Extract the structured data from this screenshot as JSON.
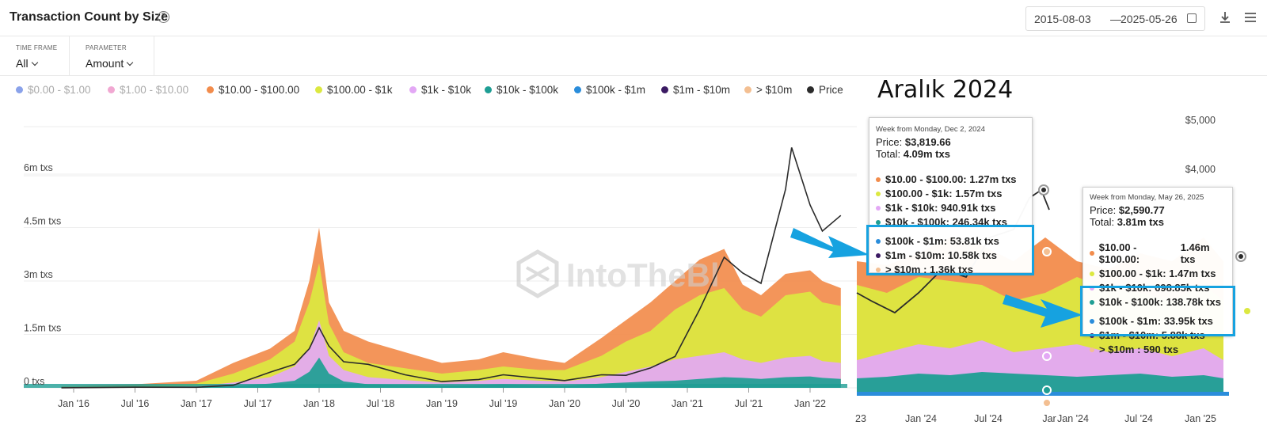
{
  "header": {
    "title": "Transaction Count by Size",
    "help_glyph": "?",
    "date_from": "2015-08-03",
    "date_sep": "—",
    "date_to": "2025-05-26"
  },
  "controls": {
    "timeframe_label": "TIME FRAME",
    "timeframe_value": "All",
    "parameter_label": "PARAMETER",
    "parameter_value": "Amount"
  },
  "overlay_title": "Aralık 2024",
  "watermark": "IntoTheBl",
  "colors": {
    "s0": "#8aa2ea",
    "s1": "#f1a8d2",
    "s2": "#f28c4c",
    "s3": "#dce840",
    "s4": "#e3a8f5",
    "s5": "#1e9e94",
    "s6": "#2a8ddb",
    "s7": "#3b1a63",
    "s8": "#f3bf92",
    "price": "#2b2b2b",
    "highlight": "#16a2e0"
  },
  "chart_data": {
    "type": "area",
    "stacked": true,
    "y_axis_left": {
      "ticks": [
        "0 txs",
        "1.5m txs",
        "3m txs",
        "4.5m txs",
        "6m txs"
      ],
      "values": [
        0,
        1.5,
        3,
        4.5,
        6
      ],
      "unit": "m txs"
    },
    "y_axis_right": {
      "ticks": [
        "$4,000",
        "$5,000"
      ],
      "values": [
        4000,
        5000
      ]
    },
    "x_ticks": [
      "Jan '16",
      "Jul '16",
      "Jan '17",
      "Jul '17",
      "Jan '18",
      "Jul '18",
      "Jan '19",
      "Jul '19",
      "Jan '20",
      "Jul '20",
      "Jan '21",
      "Jul '21",
      "Jan '22"
    ],
    "x_ticks_zoom": [
      "23",
      "Jan '24",
      "Jul '24",
      "Jar",
      "Jan '24",
      "Jul '24",
      "Jan '25"
    ],
    "legend": [
      {
        "label": "$0.00 - $1.00",
        "color_key": "s0",
        "enabled": false
      },
      {
        "label": "$1.00 - $10.00",
        "color_key": "s1",
        "enabled": false
      },
      {
        "label": "$10.00 - $100.00",
        "color_key": "s2",
        "enabled": true
      },
      {
        "label": "$100.00 - $1k",
        "color_key": "s3",
        "enabled": true
      },
      {
        "label": "$1k - $10k",
        "color_key": "s4",
        "enabled": true
      },
      {
        "label": "$10k - $100k",
        "color_key": "s5",
        "enabled": true
      },
      {
        "label": "$100k - $1m",
        "color_key": "s6",
        "enabled": true
      },
      {
        "label": "$1m - $10m",
        "color_key": "s7",
        "enabled": true
      },
      {
        "label": "> $10m",
        "color_key": "s8",
        "enabled": true
      },
      {
        "label": "Price",
        "color_key": "price",
        "enabled": true
      }
    ],
    "x_years": [
      2015.9,
      2016.5,
      2017.0,
      2017.3,
      2017.6,
      2017.8,
      2017.92,
      2018.0,
      2018.08,
      2018.2,
      2018.4,
      2018.7,
      2019.0,
      2019.3,
      2019.5,
      2019.8,
      2020.0,
      2020.3,
      2020.5,
      2020.7,
      2020.9,
      2021.1,
      2021.3,
      2021.45,
      2021.6,
      2021.8,
      2022.0,
      2022.1,
      2022.25
    ],
    "series": [
      {
        "name": "$10k - $100k",
        "values": [
          0.005,
          0.01,
          0.02,
          0.05,
          0.12,
          0.2,
          0.45,
          0.85,
          0.4,
          0.18,
          0.1,
          0.08,
          0.06,
          0.08,
          0.1,
          0.07,
          0.06,
          0.12,
          0.15,
          0.18,
          0.2,
          0.25,
          0.3,
          0.28,
          0.25,
          0.3,
          0.32,
          0.28,
          0.25
        ]
      },
      {
        "name": "$1k - $10k",
        "values": [
          0.01,
          0.02,
          0.05,
          0.15,
          0.3,
          0.6,
          1.1,
          1.9,
          0.9,
          0.5,
          0.3,
          0.22,
          0.15,
          0.2,
          0.25,
          0.2,
          0.18,
          0.3,
          0.45,
          0.6,
          0.8,
          0.9,
          1.0,
          0.8,
          0.7,
          0.85,
          0.9,
          0.75,
          0.7
        ]
      },
      {
        "name": "$100.00 - $1k",
        "values": [
          0.03,
          0.05,
          0.12,
          0.4,
          0.8,
          1.3,
          2.4,
          3.5,
          1.8,
          1.0,
          0.7,
          0.55,
          0.4,
          0.5,
          0.6,
          0.5,
          0.5,
          0.9,
          1.3,
          1.6,
          2.2,
          2.6,
          2.8,
          2.2,
          2.0,
          2.6,
          2.7,
          2.4,
          2.3
        ]
      },
      {
        "name": "$10.00 - $100.00",
        "values": [
          0.05,
          0.1,
          0.2,
          0.7,
          1.1,
          1.6,
          3.0,
          4.5,
          2.4,
          1.6,
          1.3,
          1.0,
          0.7,
          0.8,
          1.0,
          0.8,
          0.7,
          1.4,
          1.9,
          2.4,
          3.0,
          3.6,
          3.9,
          2.9,
          2.6,
          3.2,
          3.3,
          3.0,
          2.8
        ]
      }
    ],
    "price": {
      "name": "Price",
      "x": [
        2015.9,
        2016.5,
        2017.0,
        2017.3,
        2017.6,
        2017.8,
        2017.92,
        2018.0,
        2018.08,
        2018.2,
        2018.4,
        2018.7,
        2019.0,
        2019.3,
        2019.5,
        2019.8,
        2020.0,
        2020.3,
        2020.5,
        2020.7,
        2020.9,
        2021.1,
        2021.3,
        2021.45,
        2021.6,
        2021.8,
        2021.85,
        2022.0,
        2022.1,
        2022.25
      ],
      "values": [
        1,
        12,
        10,
        50,
        300,
        450,
        750,
        1150,
        800,
        500,
        450,
        250,
        120,
        160,
        250,
        180,
        140,
        250,
        240,
        380,
        600,
        1500,
        2500,
        2200,
        2000,
        3800,
        4600,
        3500,
        3000,
        3300
      ]
    },
    "tooltips": [
      {
        "head": "Week from Monday, Dec 2, 2024",
        "price_label": "Price:",
        "price": "$3,819.66",
        "total_label": "Total:",
        "total": "4.09m txs",
        "rows": [
          {
            "label": "$10.00 - $100.00:",
            "value": "1.27m txs",
            "color_key": "s2"
          },
          {
            "label": "$100.00 - $1k:",
            "value": "1.57m txs",
            "color_key": "s3"
          },
          {
            "label": "$1k - $10k:",
            "value": "940.91k txs",
            "color_key": "s4"
          },
          {
            "label": "$10k - $100k:",
            "value": "246.34k txs",
            "color_key": "s5"
          },
          {
            "label": "$100k - $1m:",
            "value": "53.81k txs",
            "color_key": "s6"
          },
          {
            "label": "$1m - $10m:",
            "value": "10.58k txs",
            "color_key": "s7"
          },
          {
            "label": "> $10m :",
            "value": "1.36k txs",
            "color_key": "s8"
          }
        ]
      },
      {
        "head": "Week from Monday, May 26, 2025",
        "price_label": "Price:",
        "price": "$2,590.77",
        "total_label": "Total:",
        "total": "3.81m txs",
        "rows": [
          {
            "label": "$10.00 - $100.00:",
            "value": "1.46m txs",
            "color_key": "s2"
          },
          {
            "label": "$100.00 - $1k:",
            "value": "1.47m txs",
            "color_key": "s3"
          },
          {
            "label": "$1k - $10k:",
            "value": "698.85k txs",
            "color_key": "s4"
          },
          {
            "label": "$10k - $100k:",
            "value": "138.78k txs",
            "color_key": "s5"
          },
          {
            "label": "$100k - $1m:",
            "value": "33.95k txs",
            "color_key": "s6"
          },
          {
            "label": "$1m - $10m:",
            "value": "5.88k txs",
            "color_key": "s7"
          },
          {
            "label": "> $10m :",
            "value": "590 txs",
            "color_key": "s8"
          }
        ]
      }
    ]
  }
}
